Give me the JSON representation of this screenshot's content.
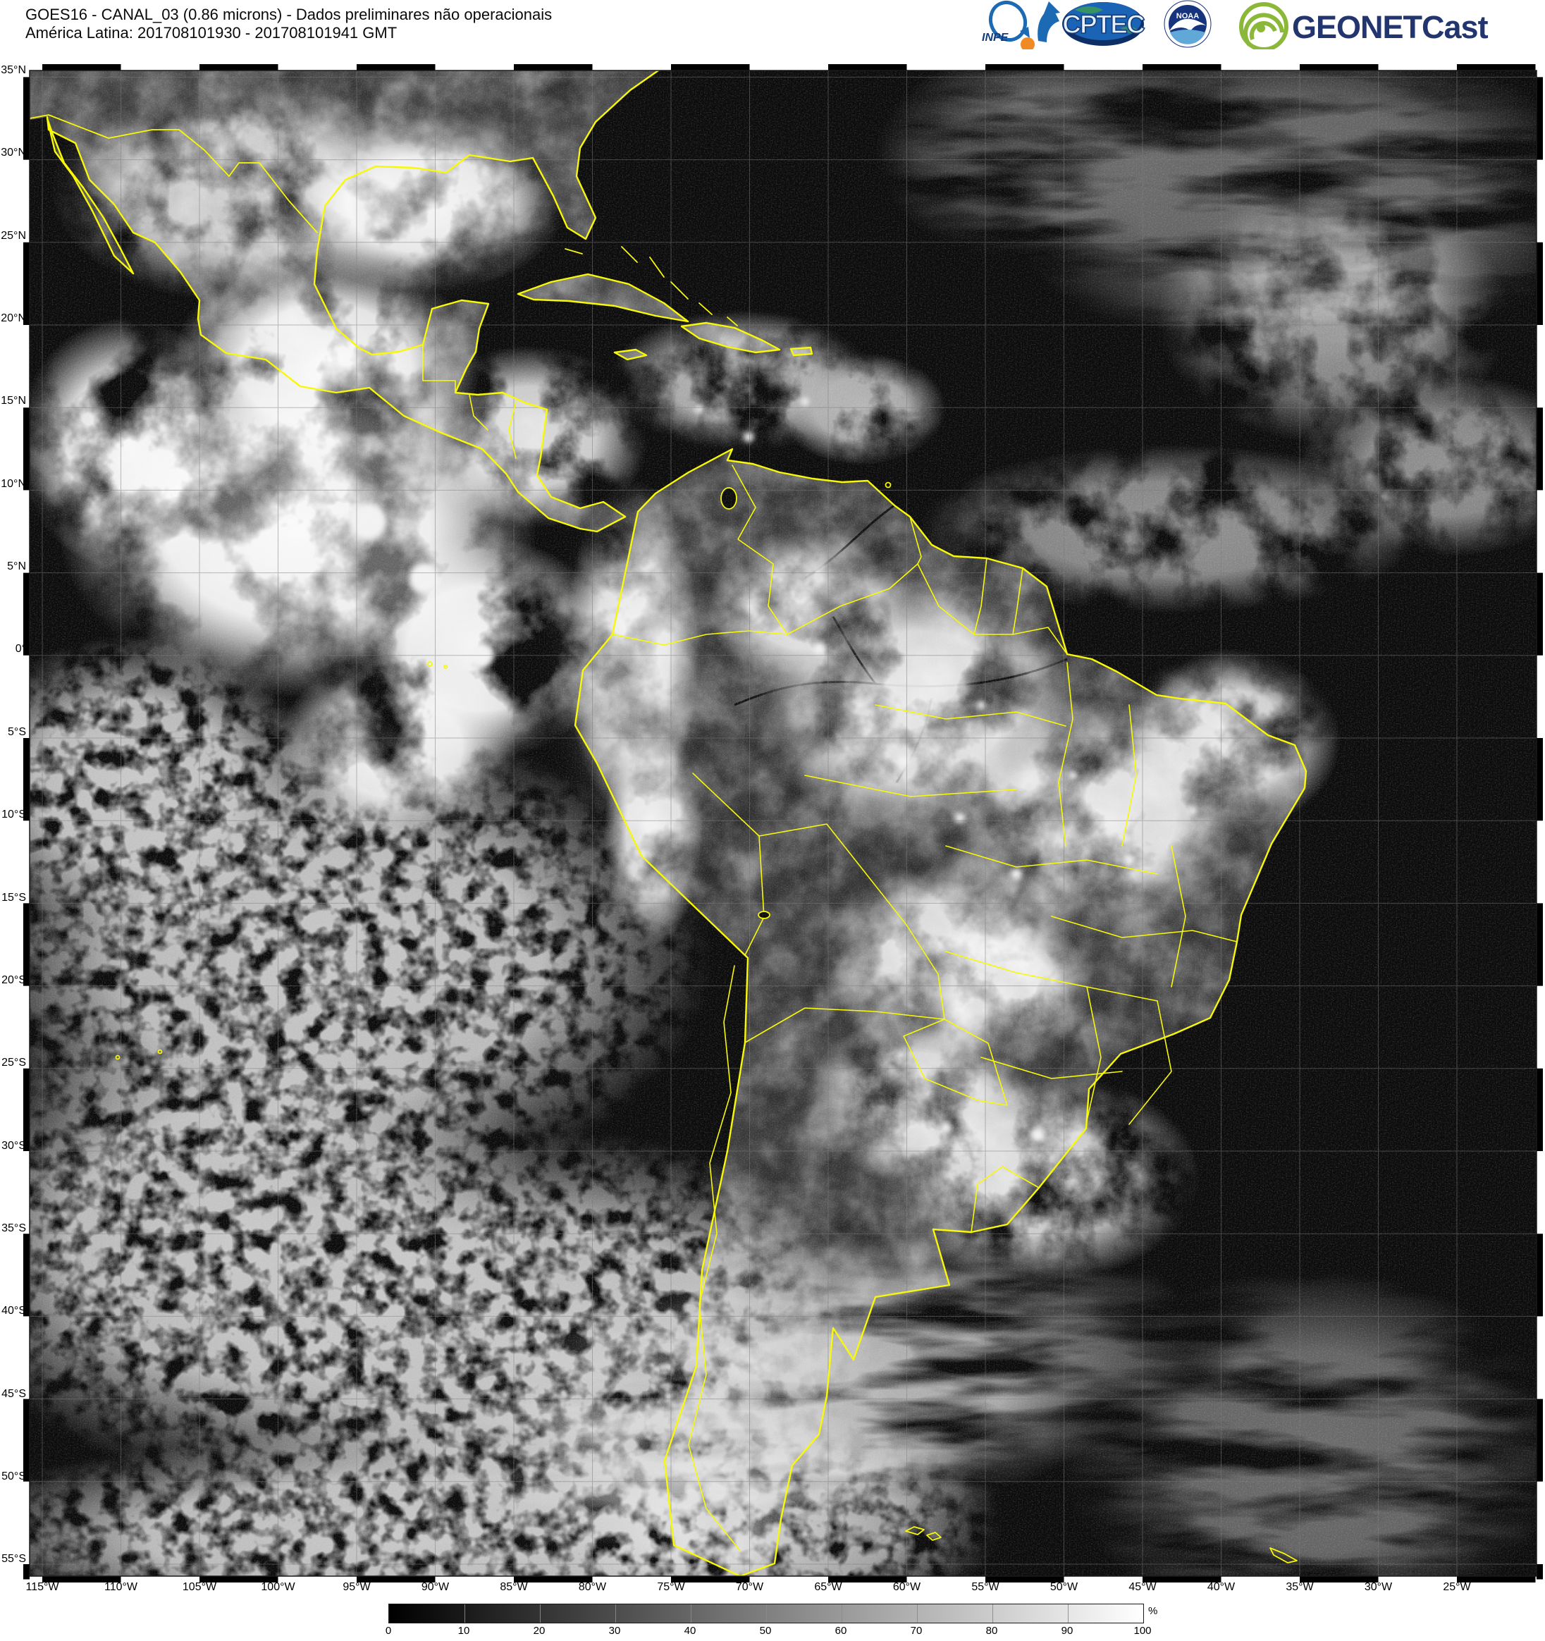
{
  "header": {
    "title_line1": "GOES16 - CANAL_03 (0.86 microns) - Dados preliminares não operacionais",
    "title_line2": "América Latina: 201708101930 - 201708101941 GMT"
  },
  "logos": {
    "inpe_label": "INPE",
    "cptec_label": "CPTEC",
    "noaa_label": "NOAA",
    "geonetcast_label": "GEONETCast"
  },
  "map": {
    "lat_labels": [
      "35°N",
      "30°N",
      "25°N",
      "20°N",
      "15°N",
      "10°N",
      "5°N",
      "0°",
      "5°S",
      "10°S",
      "15°S",
      "20°S",
      "25°S",
      "30°S",
      "35°S",
      "40°S",
      "45°S",
      "50°S",
      "55°S"
    ],
    "lon_labels": [
      "115°W",
      "110°W",
      "105°W",
      "100°W",
      "95°W",
      "90°W",
      "85°W",
      "80°W",
      "75°W",
      "70°W",
      "65°W",
      "60°W",
      "55°W",
      "50°W",
      "45°W",
      "40°W",
      "35°W",
      "30°W",
      "25°W"
    ],
    "border_color": "#f8f800",
    "grid_color": "#787878",
    "ocean_color": "#0a0a0a",
    "land_color": "#4e4e4e"
  },
  "colorbar": {
    "ticks": [
      "0",
      "10",
      "20",
      "30",
      "40",
      "50",
      "60",
      "70",
      "80",
      "90",
      "100"
    ],
    "unit": "%",
    "min_color": "#000000",
    "max_color": "#ffffff"
  },
  "brand_colors": {
    "inpe_blue": "#1b6ab3",
    "inpe_orange": "#f08a24",
    "cptec_blue": "#16498f",
    "noaa_blue": "#16337e",
    "geonetcast_green": "#8cb83a",
    "geonetcast_navy": "#22356f"
  }
}
